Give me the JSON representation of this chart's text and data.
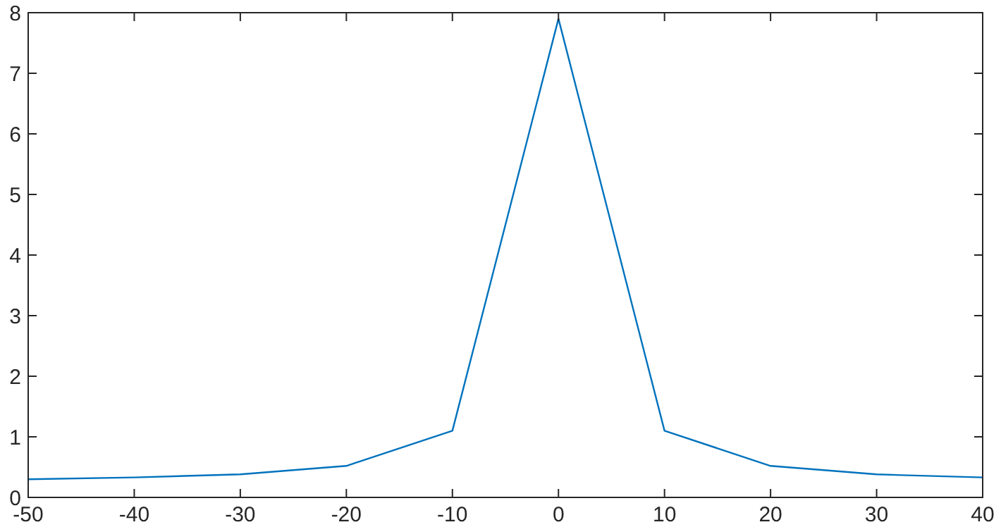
{
  "chart_data": {
    "type": "line",
    "x": [
      -50,
      -40,
      -30,
      -20,
      -10,
      0,
      10,
      20,
      30,
      40
    ],
    "series": [
      {
        "color": "#0072bd",
        "values": [
          0.3,
          0.33,
          0.38,
          0.52,
          1.1,
          7.9,
          1.1,
          0.52,
          0.38,
          0.33
        ]
      }
    ],
    "xlim": [
      -50,
      40
    ],
    "xticks": [
      -50,
      -40,
      -30,
      -20,
      -10,
      0,
      10,
      20,
      30,
      40
    ],
    "ylim": [
      0,
      8
    ],
    "yticks": [
      0,
      1,
      2,
      3,
      4,
      5,
      6,
      7,
      8
    ],
    "grid": false,
    "marker": "none",
    "line_style": "solid"
  }
}
